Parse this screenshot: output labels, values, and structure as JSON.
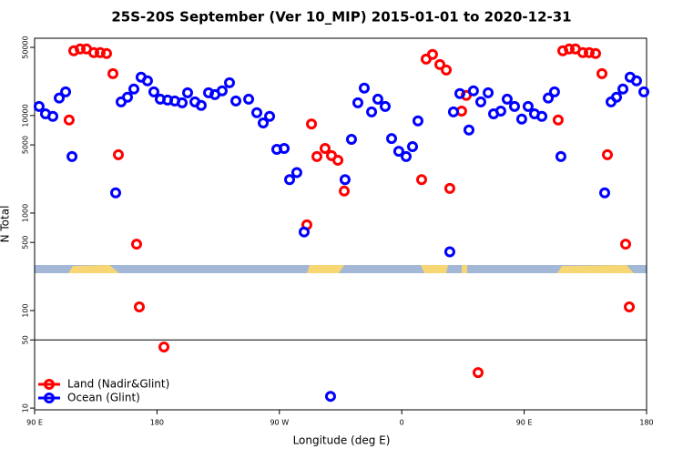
{
  "chart_data": {
    "type": "scatter",
    "title": "25S-20S September (Ver 10_MIP)   2015-01-01 to 2020-12-31",
    "x_label": "Longitude (deg E)",
    "y_label": "N Total",
    "xlim": [
      90,
      540
    ],
    "xticks": [
      {
        "value": 90,
        "label": "90 E"
      },
      180,
      {
        "value": 270,
        "label": "90 W"
      },
      {
        "value": 360,
        "label": "0"
      },
      {
        "value": 450,
        "label": "90 E"
      },
      {
        "value": 540,
        "label": "180"
      }
    ],
    "ylim": [
      9.6,
      62000
    ],
    "y_log": true,
    "yticks": [
      10,
      50,
      100,
      500,
      1000,
      5000,
      10000,
      50000
    ],
    "legend_position": "lower-left",
    "series": [
      {
        "name": "Land (Nadir&Glint)",
        "color": "#ff0000",
        "x": [
          115.4,
          118.8,
          123.5,
          128.2,
          133.5,
          138.2,
          142.9,
          147.6,
          151.6,
          165.0,
          167.0,
          185.1,
          290.2,
          293.6,
          297.6,
          303.6,
          308.3,
          313.0,
          317.7,
          374.6,
          377.9,
          382.6,
          388.0,
          392.7,
          395.3,
          404.0,
          407.4,
          416.1,
          475.0,
          478.4,
          483.1,
          487.7,
          493.1,
          497.8,
          502.5,
          507.2,
          511.2,
          524.6,
          527.3
        ],
        "values": [
          9000,
          46100,
          48100,
          48100,
          44200,
          44200,
          43200,
          26900,
          3960,
          480,
          109,
          42.3,
          757,
          8200,
          3800,
          4600,
          3880,
          3480,
          1680,
          2200,
          37900,
          42300,
          33300,
          29300,
          1790,
          11100,
          16100,
          23.1,
          9000,
          46100,
          48100,
          48100,
          44200,
          44200,
          43200,
          26900,
          3960,
          480,
          109
        ]
      },
      {
        "name": "Ocean (Glint)",
        "color": "#0000ff",
        "x": [
          93.3,
          98.0,
          103.4,
          108.1,
          112.8,
          117.5,
          149.6,
          153.6,
          158.3,
          163.0,
          168.3,
          173.0,
          177.7,
          182.4,
          187.8,
          193.1,
          198.5,
          202.5,
          207.9,
          212.5,
          217.9,
          222.6,
          227.9,
          233.3,
          238.0,
          247.4,
          253.4,
          258.1,
          262.8,
          268.1,
          273.5,
          277.5,
          282.8,
          288.2,
          318.3,
          323.0,
          327.7,
          332.4,
          337.8,
          342.4,
          347.8,
          352.5,
          357.8,
          363.2,
          367.9,
          371.9,
          395.3,
          398.0,
          402.7,
          409.4,
          412.7,
          418.1,
          423.5,
          427.5,
          432.8,
          437.5,
          442.9,
          448.2,
          452.9,
          457.6,
          463.0,
          467.7,
          472.3,
          477.0,
          509.2,
          513.9,
          517.9,
          522.6,
          527.9,
          532.6,
          538.0,
          307.6
        ],
        "values": [
          12400,
          10400,
          9800,
          15100,
          17500,
          3800,
          1610,
          13800,
          15400,
          18700,
          24700,
          22700,
          17500,
          14700,
          14400,
          14100,
          13500,
          17100,
          13800,
          12700,
          17100,
          16400,
          17900,
          21700,
          14100,
          14700,
          10700,
          8400,
          9800,
          4500,
          4600,
          2200,
          2600,
          640,
          2200,
          5700,
          13500,
          19100,
          10900,
          14700,
          12400,
          5800,
          4300,
          3800,
          4800,
          8800,
          400,
          10900,
          16800,
          7100,
          17900,
          13800,
          17100,
          10400,
          11100,
          14700,
          12400,
          9200,
          12400,
          10400,
          9800,
          15100,
          17500,
          3800,
          1610,
          13800,
          15400,
          18700,
          24700,
          22700,
          17500,
          13.2
        ]
      }
    ]
  }
}
